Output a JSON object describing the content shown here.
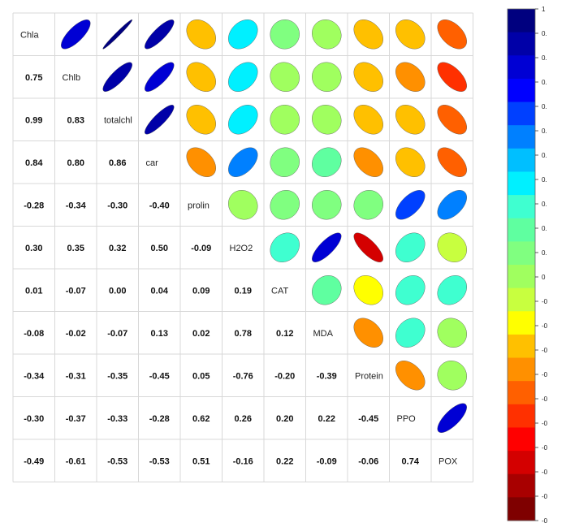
{
  "chart_data": {
    "type": "heatmap",
    "variables": [
      "Chla",
      "Chlb",
      "totalchl",
      "car",
      "prolin",
      "H2O2",
      "CAT",
      "MDA",
      "Protein",
      "PPO",
      "POX"
    ],
    "lower_labels": [
      [],
      [
        "0.75"
      ],
      [
        "0.99",
        "0.83"
      ],
      [
        "0.84",
        "0.80",
        "0.86"
      ],
      [
        "-0.28",
        "-0.34",
        "-0.30",
        "-0.40"
      ],
      [
        "0.30",
        "0.35",
        "0.32",
        "0.50",
        "-0.09"
      ],
      [
        "0.01",
        "-0.07",
        "0.00",
        "0.04",
        "0.09",
        "0.19"
      ],
      [
        "-0.08",
        "-0.02",
        "-0.07",
        "0.13",
        "0.02",
        "0.78",
        "0.12"
      ],
      [
        "-0.34",
        "-0.31",
        "-0.35",
        "-0.45",
        "0.05",
        "-0.76",
        "-0.20",
        "-0.39"
      ],
      [
        "-0.30",
        "-0.37",
        "-0.33",
        "-0.28",
        "0.62",
        "0.26",
        "0.20",
        "0.22",
        "-0.45"
      ],
      [
        "-0.49",
        "-0.61",
        "-0.53",
        "-0.53",
        "0.51",
        "-0.16",
        "0.22",
        "-0.09",
        "-0.06",
        "0.74"
      ]
    ],
    "colorbar": {
      "range": [
        -1,
        1
      ],
      "tick_labels": [
        "1",
        "0.",
        "0.",
        "0.",
        "0.",
        "0.",
        "0.",
        "0.",
        "0.",
        "0.",
        "0.",
        "0",
        "-0",
        "-0",
        "-0",
        "-0",
        "-0",
        "-0",
        "-0",
        "-0",
        "-0",
        "-0"
      ],
      "colors": [
        "#00007F",
        "#0000A8",
        "#0000D4",
        "#0000FF",
        "#0040FF",
        "#0080FF",
        "#00BFFF",
        "#00F0FF",
        "#3FFFD0",
        "#5FFFA0",
        "#80FF80",
        "#A0FF5F",
        "#C8FF3F",
        "#FFFF00",
        "#FFC000",
        "#FF9000",
        "#FF6000",
        "#FF3000",
        "#FF0000",
        "#D40000",
        "#A80000",
        "#7F0000"
      ]
    }
  }
}
